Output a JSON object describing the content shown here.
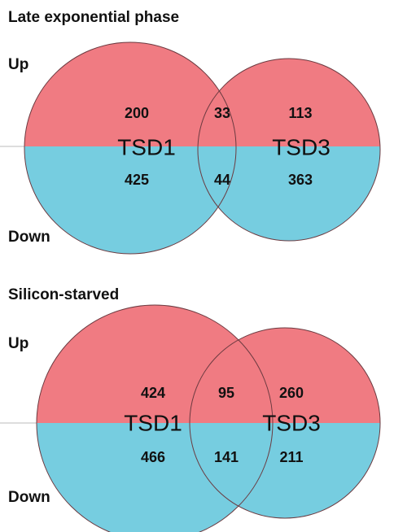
{
  "panels": [
    {
      "title": "Late exponential phase",
      "up_label": "Up",
      "down_label": "Down",
      "sets": [
        "TSD1",
        "TSD3"
      ],
      "up": [
        200,
        33,
        113
      ],
      "down": [
        425,
        44,
        363
      ]
    },
    {
      "title": "Silicon-starved",
      "up_label": "Up",
      "down_label": "Down",
      "sets": [
        "TSD1",
        "TSD3"
      ],
      "up": [
        424,
        95,
        260
      ],
      "down": [
        466,
        141,
        211
      ]
    }
  ]
}
